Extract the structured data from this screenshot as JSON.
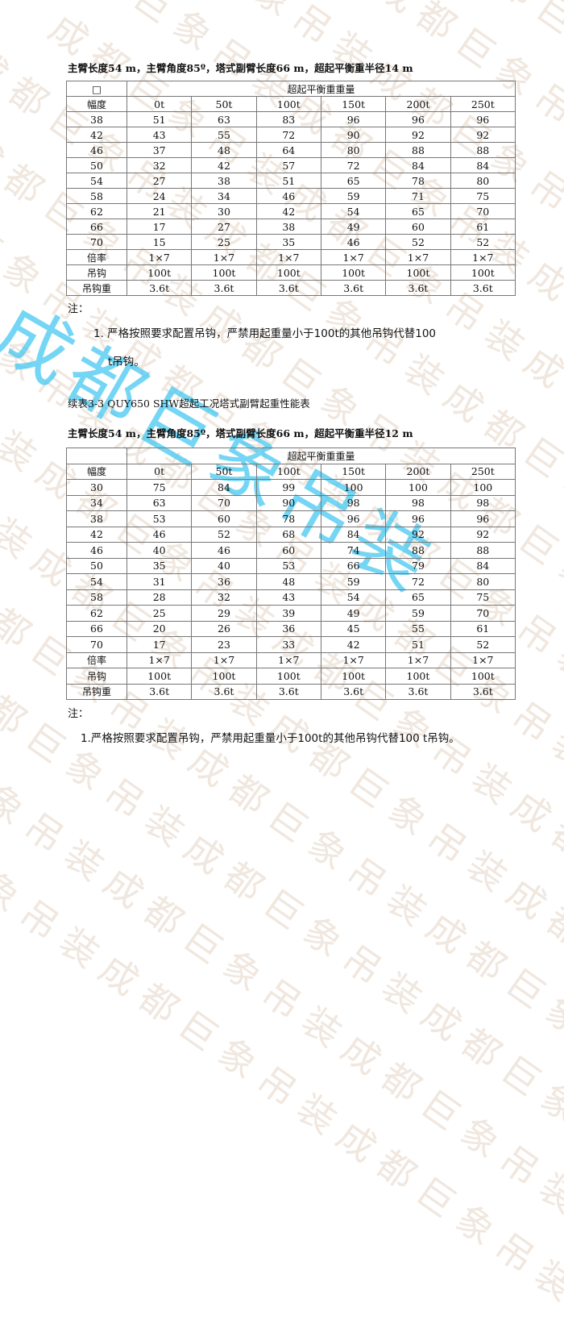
{
  "watermark": "成都巨象吊装",
  "table1": {
    "title": "主臂长度54 m，主臂角度85º，塔式副臂长度66 m，超起平衡重半径14 m",
    "corner": "□",
    "group_header": "超起平衡重重量",
    "row_header": "幅度",
    "columns": [
      "0t",
      "50t",
      "100t",
      "150t",
      "200t",
      "250t"
    ],
    "rows": [
      [
        "38",
        "51",
        "63",
        "83",
        "96",
        "96",
        "96"
      ],
      [
        "42",
        "43",
        "55",
        "72",
        "90",
        "92",
        "92"
      ],
      [
        "46",
        "37",
        "48",
        "64",
        "80",
        "88",
        "88"
      ],
      [
        "50",
        "32",
        "42",
        "57",
        "72",
        "84",
        "84"
      ],
      [
        "54",
        "27",
        "38",
        "51",
        "65",
        "78",
        "80"
      ],
      [
        "58",
        "24",
        "34",
        "46",
        "59",
        "71",
        "75"
      ],
      [
        "62",
        "21",
        "30",
        "42",
        "54",
        "65",
        "70"
      ],
      [
        "66",
        "17",
        "27",
        "38",
        "49",
        "60",
        "61"
      ],
      [
        "70",
        "15",
        "25",
        "35",
        "46",
        "52",
        "52"
      ],
      [
        "倍率",
        "1×7",
        "1×7",
        "1×7",
        "1×7",
        "1×7",
        "1×7"
      ],
      [
        "吊钩",
        "100t",
        "100t",
        "100t",
        "100t",
        "100t",
        "100t"
      ],
      [
        "吊钩重",
        "3.6t",
        "3.6t",
        "3.6t",
        "3.6t",
        "3.6t",
        "3.6t"
      ]
    ],
    "note_label": "注：",
    "note_line1": "1.  严格按照要求配置吊钩，严禁用起重量小于100t的其他吊钩代替100",
    "note_line2": "t吊钩。"
  },
  "caption": "续表3-3 QUY650 SHW超起工况塔式副臂起重性能表",
  "table2": {
    "title": "主臂长度54 m，主臂角度85º，塔式副臂长度66 m，超起平衡重半径12 m",
    "corner": "",
    "group_header": "超起平衡重重量",
    "row_header": "幅度",
    "columns": [
      "0t",
      "50t",
      "100t",
      "150t",
      "200t",
      "250t"
    ],
    "rows": [
      [
        "30",
        "75",
        "84",
        "99",
        "100",
        "100",
        "100"
      ],
      [
        "34",
        "63",
        "70",
        "90",
        "98",
        "98",
        "98"
      ],
      [
        "38",
        "53",
        "60",
        "78",
        "96",
        "96",
        "96"
      ],
      [
        "42",
        "46",
        "52",
        "68",
        "84",
        "92",
        "92"
      ],
      [
        "46",
        "40",
        "46",
        "60",
        "74",
        "88",
        "88"
      ],
      [
        "50",
        "35",
        "40",
        "53",
        "66",
        "79",
        "84"
      ],
      [
        "54",
        "31",
        "36",
        "48",
        "59",
        "72",
        "80"
      ],
      [
        "58",
        "28",
        "32",
        "43",
        "54",
        "65",
        "75"
      ],
      [
        "62",
        "25",
        "29",
        "39",
        "49",
        "59",
        "70"
      ],
      [
        "66",
        "20",
        "26",
        "36",
        "45",
        "55",
        "61"
      ],
      [
        "70",
        "17",
        "23",
        "33",
        "42",
        "51",
        "52"
      ],
      [
        "倍率",
        "1×7",
        "1×7",
        "1×7",
        "1×7",
        "1×7",
        "1×7"
      ],
      [
        "吊钩",
        "100t",
        "100t",
        "100t",
        "100t",
        "100t",
        "100t"
      ],
      [
        "吊钩重",
        "3.6t",
        "3.6t",
        "3.6t",
        "3.6t",
        "3.6t",
        "3.6t"
      ]
    ],
    "note_label": "注：",
    "note_line1": "1.严格按照要求配置吊钩，严禁用起重量小于100t的其他吊钩代替100 t吊钩。"
  }
}
